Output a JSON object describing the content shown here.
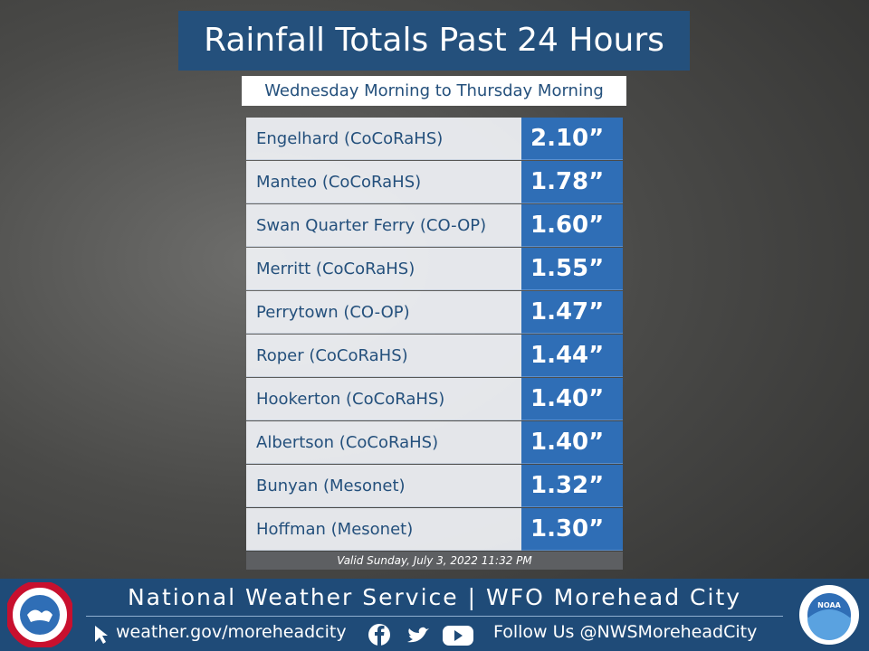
{
  "header": {
    "title": "Rainfall Totals Past 24 Hours",
    "subtitle": "Wednesday Morning to Thursday Morning"
  },
  "table": {
    "rows": [
      [
        "Engelhard (CoCoRaHS)",
        "2.10”"
      ],
      [
        "Manteo (CoCoRaHS)",
        "1.78”"
      ],
      [
        "Swan Quarter Ferry (CO-OP)",
        "1.60”"
      ],
      [
        "Merritt (CoCoRaHS)",
        "1.55”"
      ],
      [
        "Perrytown (CO-OP)",
        "1.47”"
      ],
      [
        "Roper (CoCoRaHS)",
        "1.44”"
      ],
      [
        "Hookerton (CoCoRaHS)",
        "1.40”"
      ],
      [
        "Albertson (CoCoRaHS)",
        "1.40”"
      ],
      [
        "Bunyan (Mesonet)",
        "1.32”"
      ],
      [
        "Hoffman (Mesonet)",
        "1.30”"
      ]
    ],
    "valid": "Valid Sunday, July 3, 2022 11:32 PM"
  },
  "footer": {
    "office": "National Weather Service | WFO Morehead City",
    "website": "weather.gov/moreheadcity",
    "social": "Follow Us @NWSMoreheadCity",
    "noaa": "NOAA"
  }
}
